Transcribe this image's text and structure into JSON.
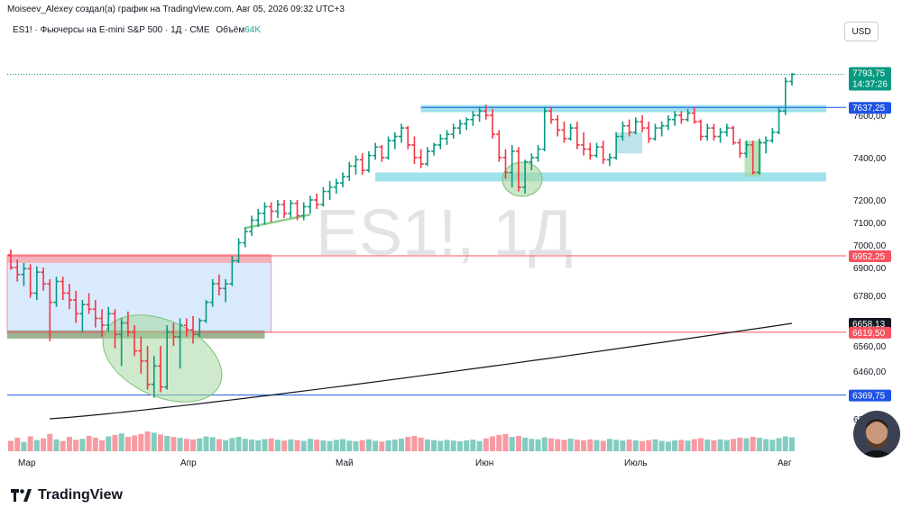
{
  "header": {
    "author_line": "Moiseev_Alexey создал(а) график на TradingView.com, Авг 05, 2026 09:32 UTC+3"
  },
  "symbol_bar": {
    "title": "ES1! · Фьючерсы на E-mini S&P 500 · 1Д · CME",
    "volume_label": "Объём",
    "volume_value": "64K"
  },
  "currency_button": "USD",
  "watermark": "ES1!, 1Д",
  "brand": "TradingView",
  "price_badges": [
    {
      "label": "7793,75",
      "sublabel": "14:37:26",
      "price": 7793.75,
      "color": "#089981"
    },
    {
      "label": "7637,25",
      "price": 7637.25,
      "color": "#1e53e5"
    },
    {
      "label": "6952,25",
      "price": 6952.25,
      "color": "#f7525f"
    },
    {
      "label": "6658,13",
      "price": 6658.13,
      "color": "#131722"
    },
    {
      "label": "6619,50",
      "price": 6619.5,
      "color": "#f7525f"
    },
    {
      "label": "6369,75",
      "price": 6369.75,
      "color": "#1e53e5"
    }
  ],
  "chart_data": {
    "type": "ohlc-bar",
    "interval": "1D",
    "y_ticks": [
      "7600,00",
      "7400,00",
      "7200,00",
      "7100,00",
      "7000,00",
      "6900,00",
      "6780,00",
      "6560,00",
      "6460,00",
      "6280,00"
    ],
    "x_ticks": [
      "Мар",
      "Апр",
      "Май",
      "Июн",
      "Июль",
      "Авг"
    ],
    "bars": [
      {
        "o": 6955,
        "h": 6980,
        "l": 6890,
        "c": 6900
      },
      {
        "o": 6900,
        "h": 6935,
        "l": 6840,
        "c": 6870
      },
      {
        "o": 6870,
        "h": 6920,
        "l": 6820,
        "c": 6895
      },
      {
        "o": 6895,
        "h": 6915,
        "l": 6770,
        "c": 6790
      },
      {
        "o": 6790,
        "h": 6905,
        "l": 6760,
        "c": 6880
      },
      {
        "o": 6880,
        "h": 6900,
        "l": 6800,
        "c": 6830
      },
      {
        "o": 6830,
        "h": 6850,
        "l": 6580,
        "c": 6750
      },
      {
        "o": 6750,
        "h": 6860,
        "l": 6730,
        "c": 6840
      },
      {
        "o": 6840,
        "h": 6860,
        "l": 6760,
        "c": 6790
      },
      {
        "o": 6790,
        "h": 6830,
        "l": 6720,
        "c": 6760
      },
      {
        "o": 6760,
        "h": 6800,
        "l": 6660,
        "c": 6700
      },
      {
        "o": 6700,
        "h": 6760,
        "l": 6620,
        "c": 6740
      },
      {
        "o": 6740,
        "h": 6790,
        "l": 6700,
        "c": 6720
      },
      {
        "o": 6720,
        "h": 6760,
        "l": 6640,
        "c": 6680
      },
      {
        "o": 6680,
        "h": 6720,
        "l": 6600,
        "c": 6650
      },
      {
        "o": 6650,
        "h": 6730,
        "l": 6620,
        "c": 6700
      },
      {
        "o": 6700,
        "h": 6720,
        "l": 6550,
        "c": 6610
      },
      {
        "o": 6610,
        "h": 6680,
        "l": 6480,
        "c": 6660
      },
      {
        "o": 6660,
        "h": 6710,
        "l": 6600,
        "c": 6620
      },
      {
        "o": 6620,
        "h": 6650,
        "l": 6520,
        "c": 6540
      },
      {
        "o": 6540,
        "h": 6600,
        "l": 6450,
        "c": 6500
      },
      {
        "o": 6500,
        "h": 6560,
        "l": 6390,
        "c": 6410
      },
      {
        "o": 6410,
        "h": 6520,
        "l": 6360,
        "c": 6480
      },
      {
        "o": 6480,
        "h": 6560,
        "l": 6380,
        "c": 6400
      },
      {
        "o": 6400,
        "h": 6650,
        "l": 6390,
        "c": 6620
      },
      {
        "o": 6620,
        "h": 6660,
        "l": 6560,
        "c": 6600
      },
      {
        "o": 6600,
        "h": 6680,
        "l": 6470,
        "c": 6650
      },
      {
        "o": 6650,
        "h": 6680,
        "l": 6600,
        "c": 6630
      },
      {
        "o": 6630,
        "h": 6690,
        "l": 6570,
        "c": 6610
      },
      {
        "o": 6610,
        "h": 6680,
        "l": 6600,
        "c": 6670
      },
      {
        "o": 6670,
        "h": 6760,
        "l": 6660,
        "c": 6750
      },
      {
        "o": 6750,
        "h": 6850,
        "l": 6730,
        "c": 6830
      },
      {
        "o": 6830,
        "h": 6870,
        "l": 6780,
        "c": 6810
      },
      {
        "o": 6810,
        "h": 6850,
        "l": 6750,
        "c": 6830
      },
      {
        "o": 6830,
        "h": 6950,
        "l": 6820,
        "c": 6930
      },
      {
        "o": 6930,
        "h": 7030,
        "l": 6920,
        "c": 7010
      },
      {
        "o": 7010,
        "h": 7080,
        "l": 6990,
        "c": 7060
      },
      {
        "o": 7060,
        "h": 7130,
        "l": 7040,
        "c": 7110
      },
      {
        "o": 7110,
        "h": 7160,
        "l": 7080,
        "c": 7140
      },
      {
        "o": 7140,
        "h": 7190,
        "l": 7090,
        "c": 7170
      },
      {
        "o": 7170,
        "h": 7190,
        "l": 7100,
        "c": 7150
      },
      {
        "o": 7150,
        "h": 7200,
        "l": 7120,
        "c": 7180
      },
      {
        "o": 7180,
        "h": 7200,
        "l": 7120,
        "c": 7140
      },
      {
        "o": 7140,
        "h": 7200,
        "l": 7120,
        "c": 7185
      },
      {
        "o": 7185,
        "h": 7200,
        "l": 7110,
        "c": 7130
      },
      {
        "o": 7130,
        "h": 7190,
        "l": 7110,
        "c": 7170
      },
      {
        "o": 7170,
        "h": 7220,
        "l": 7140,
        "c": 7200
      },
      {
        "o": 7200,
        "h": 7230,
        "l": 7160,
        "c": 7180
      },
      {
        "o": 7180,
        "h": 7260,
        "l": 7170,
        "c": 7240
      },
      {
        "o": 7240,
        "h": 7290,
        "l": 7200,
        "c": 7260
      },
      {
        "o": 7260,
        "h": 7300,
        "l": 7230,
        "c": 7280
      },
      {
        "o": 7280,
        "h": 7330,
        "l": 7260,
        "c": 7310
      },
      {
        "o": 7310,
        "h": 7380,
        "l": 7290,
        "c": 7360
      },
      {
        "o": 7360,
        "h": 7410,
        "l": 7320,
        "c": 7390
      },
      {
        "o": 7390,
        "h": 7420,
        "l": 7320,
        "c": 7340
      },
      {
        "o": 7340,
        "h": 7430,
        "l": 7330,
        "c": 7410
      },
      {
        "o": 7410,
        "h": 7470,
        "l": 7390,
        "c": 7450
      },
      {
        "o": 7450,
        "h": 7460,
        "l": 7380,
        "c": 7400
      },
      {
        "o": 7400,
        "h": 7500,
        "l": 7390,
        "c": 7480
      },
      {
        "o": 7480,
        "h": 7520,
        "l": 7440,
        "c": 7500
      },
      {
        "o": 7500,
        "h": 7560,
        "l": 7470,
        "c": 7540
      },
      {
        "o": 7540,
        "h": 7550,
        "l": 7440,
        "c": 7460
      },
      {
        "o": 7460,
        "h": 7500,
        "l": 7370,
        "c": 7400
      },
      {
        "o": 7400,
        "h": 7440,
        "l": 7350,
        "c": 7370
      },
      {
        "o": 7370,
        "h": 7450,
        "l": 7360,
        "c": 7430
      },
      {
        "o": 7430,
        "h": 7470,
        "l": 7410,
        "c": 7460
      },
      {
        "o": 7460,
        "h": 7510,
        "l": 7440,
        "c": 7490
      },
      {
        "o": 7490,
        "h": 7530,
        "l": 7460,
        "c": 7510
      },
      {
        "o": 7510,
        "h": 7560,
        "l": 7490,
        "c": 7540
      },
      {
        "o": 7540,
        "h": 7580,
        "l": 7510,
        "c": 7560
      },
      {
        "o": 7560,
        "h": 7590,
        "l": 7530,
        "c": 7580
      },
      {
        "o": 7580,
        "h": 7620,
        "l": 7550,
        "c": 7600
      },
      {
        "o": 7600,
        "h": 7640,
        "l": 7570,
        "c": 7620
      },
      {
        "o": 7620,
        "h": 7650,
        "l": 7580,
        "c": 7600
      },
      {
        "o": 7600,
        "h": 7630,
        "l": 7490,
        "c": 7510
      },
      {
        "o": 7510,
        "h": 7530,
        "l": 7380,
        "c": 7400
      },
      {
        "o": 7400,
        "h": 7440,
        "l": 7300,
        "c": 7330
      },
      {
        "o": 7330,
        "h": 7460,
        "l": 7260,
        "c": 7430
      },
      {
        "o": 7430,
        "h": 7450,
        "l": 7240,
        "c": 7260
      },
      {
        "o": 7260,
        "h": 7390,
        "l": 7230,
        "c": 7380
      },
      {
        "o": 7380,
        "h": 7420,
        "l": 7340,
        "c": 7400
      },
      {
        "o": 7400,
        "h": 7460,
        "l": 7380,
        "c": 7440
      },
      {
        "o": 7440,
        "h": 7640,
        "l": 7430,
        "c": 7620
      },
      {
        "o": 7620,
        "h": 7640,
        "l": 7560,
        "c": 7580
      },
      {
        "o": 7580,
        "h": 7600,
        "l": 7500,
        "c": 7530
      },
      {
        "o": 7530,
        "h": 7570,
        "l": 7470,
        "c": 7490
      },
      {
        "o": 7490,
        "h": 7560,
        "l": 7480,
        "c": 7540
      },
      {
        "o": 7540,
        "h": 7570,
        "l": 7440,
        "c": 7460
      },
      {
        "o": 7460,
        "h": 7520,
        "l": 7410,
        "c": 7440
      },
      {
        "o": 7440,
        "h": 7470,
        "l": 7390,
        "c": 7410
      },
      {
        "o": 7410,
        "h": 7470,
        "l": 7400,
        "c": 7450
      },
      {
        "o": 7450,
        "h": 7480,
        "l": 7370,
        "c": 7390
      },
      {
        "o": 7390,
        "h": 7420,
        "l": 7360,
        "c": 7400
      },
      {
        "o": 7400,
        "h": 7520,
        "l": 7390,
        "c": 7500
      },
      {
        "o": 7500,
        "h": 7570,
        "l": 7480,
        "c": 7550
      },
      {
        "o": 7550,
        "h": 7580,
        "l": 7500,
        "c": 7520
      },
      {
        "o": 7520,
        "h": 7590,
        "l": 7510,
        "c": 7570
      },
      {
        "o": 7570,
        "h": 7600,
        "l": 7520,
        "c": 7540
      },
      {
        "o": 7540,
        "h": 7570,
        "l": 7470,
        "c": 7490
      },
      {
        "o": 7490,
        "h": 7560,
        "l": 7480,
        "c": 7540
      },
      {
        "o": 7540,
        "h": 7570,
        "l": 7500,
        "c": 7550
      },
      {
        "o": 7550,
        "h": 7600,
        "l": 7530,
        "c": 7580
      },
      {
        "o": 7580,
        "h": 7620,
        "l": 7550,
        "c": 7600
      },
      {
        "o": 7600,
        "h": 7620,
        "l": 7560,
        "c": 7580
      },
      {
        "o": 7580,
        "h": 7630,
        "l": 7570,
        "c": 7610
      },
      {
        "o": 7610,
        "h": 7640,
        "l": 7560,
        "c": 7570
      },
      {
        "o": 7570,
        "h": 7580,
        "l": 7480,
        "c": 7500
      },
      {
        "o": 7500,
        "h": 7560,
        "l": 7480,
        "c": 7540
      },
      {
        "o": 7540,
        "h": 7560,
        "l": 7480,
        "c": 7500
      },
      {
        "o": 7500,
        "h": 7540,
        "l": 7470,
        "c": 7520
      },
      {
        "o": 7520,
        "h": 7560,
        "l": 7500,
        "c": 7540
      },
      {
        "o": 7540,
        "h": 7550,
        "l": 7460,
        "c": 7470
      },
      {
        "o": 7470,
        "h": 7490,
        "l": 7400,
        "c": 7420
      },
      {
        "o": 7420,
        "h": 7480,
        "l": 7400,
        "c": 7460
      },
      {
        "o": 7460,
        "h": 7480,
        "l": 7320,
        "c": 7330
      },
      {
        "o": 7330,
        "h": 7490,
        "l": 7320,
        "c": 7470
      },
      {
        "o": 7470,
        "h": 7500,
        "l": 7420,
        "c": 7480
      },
      {
        "o": 7480,
        "h": 7540,
        "l": 7470,
        "c": 7520
      },
      {
        "o": 7520,
        "h": 7640,
        "l": 7510,
        "c": 7620
      },
      {
        "o": 7620,
        "h": 7780,
        "l": 7600,
        "c": 7760
      },
      {
        "o": 7760,
        "h": 7800,
        "l": 7740,
        "c": 7793.75
      }
    ],
    "sma": {
      "start": 6280,
      "end": 6658.13
    },
    "drawings": {
      "zones": [
        {
          "label": "range",
          "top": 6952.25,
          "bottom": 6619.5,
          "color": "#bbd9fb"
        },
        {
          "label": "resistance",
          "top": 7640,
          "bottom": 7620,
          "color": "#7fd8e6"
        },
        {
          "label": "support",
          "top": 7330,
          "bottom": 7315,
          "color": "#7fd8e6"
        }
      ],
      "hlines": [
        {
          "price": 7637.25,
          "color": "#1e53e5"
        },
        {
          "price": 6952.25,
          "color": "#f7525f"
        },
        {
          "price": 6619.5,
          "color": "#f7525f"
        },
        {
          "price": 6369.75,
          "color": "#1e53e5"
        }
      ]
    },
    "volume": [
      42,
      55,
      38,
      60,
      45,
      52,
      70,
      48,
      41,
      58,
      46,
      50,
      62,
      55,
      44,
      60,
      66,
      72,
      58,
      64,
      70,
      80,
      75,
      68,
      62,
      58,
      54,
      50,
      48,
      52,
      60,
      57,
      49,
      45,
      53,
      58,
      50,
      47,
      44,
      49,
      52,
      46,
      43,
      48,
      45,
      42,
      50,
      47,
      44,
      41,
      46,
      49,
      43,
      40,
      45,
      48,
      42,
      39,
      44,
      47,
      51,
      58,
      62,
      55,
      48,
      45,
      42,
      46,
      43,
      40,
      44,
      47,
      41,
      52,
      60,
      66,
      70,
      58,
      62,
      55,
      50,
      48,
      56,
      52,
      49,
      46,
      51,
      47,
      44,
      48,
      45,
      42,
      50,
      46,
      43,
      47,
      44,
      41,
      45,
      48,
      42,
      39,
      44,
      46,
      43,
      49,
      53,
      47,
      44,
      48,
      45,
      50,
      55,
      52,
      58,
      54,
      49,
      46,
      53,
      60,
      56
    ]
  }
}
